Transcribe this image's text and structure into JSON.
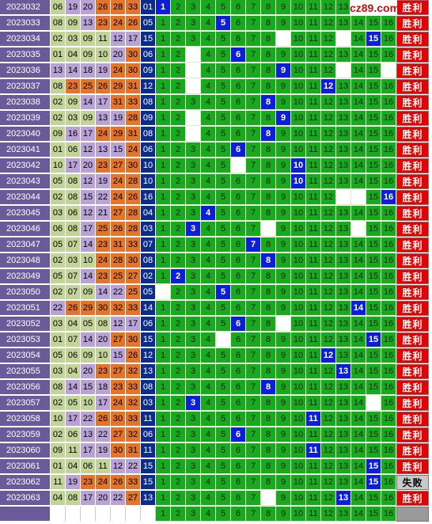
{
  "logo": {
    "text": "cz89.com"
  },
  "rows": [
    {
      "period": "2023032",
      "reds": [
        6,
        19,
        20,
        26,
        28,
        33
      ],
      "blue": 1,
      "result": "胜利"
    },
    {
      "period": "2023033",
      "reds": [
        8,
        9,
        13,
        23,
        24,
        26
      ],
      "blue": 5,
      "result": "胜利"
    },
    {
      "period": "2023034",
      "reds": [
        2,
        3,
        9,
        11,
        12,
        17
      ],
      "blue": 15,
      "result": "胜利"
    },
    {
      "period": "2023035",
      "reds": [
        1,
        4,
        9,
        10,
        20,
        30
      ],
      "blue": 6,
      "result": "胜利"
    },
    {
      "period": "2023036",
      "reds": [
        13,
        14,
        18,
        19,
        24,
        30
      ],
      "blue": 9,
      "result": "胜利"
    },
    {
      "period": "2023037",
      "reds": [
        8,
        23,
        25,
        26,
        29,
        31
      ],
      "blue": 12,
      "result": "胜利"
    },
    {
      "period": "2023038",
      "reds": [
        2,
        9,
        14,
        17,
        31,
        33
      ],
      "blue": 8,
      "result": "胜利"
    },
    {
      "period": "2023039",
      "reds": [
        2,
        3,
        9,
        13,
        19,
        28
      ],
      "blue": 9,
      "result": "胜利"
    },
    {
      "period": "2023040",
      "reds": [
        9,
        16,
        17,
        24,
        29,
        31
      ],
      "blue": 8,
      "result": "胜利"
    },
    {
      "period": "2023041",
      "reds": [
        1,
        6,
        12,
        13,
        15,
        24
      ],
      "blue": 6,
      "result": "胜利"
    },
    {
      "period": "2023042",
      "reds": [
        10,
        17,
        20,
        23,
        27,
        30
      ],
      "blue": 10,
      "result": "胜利"
    },
    {
      "period": "2023043",
      "reds": [
        5,
        8,
        12,
        19,
        24,
        28
      ],
      "blue": 10,
      "result": "胜利"
    },
    {
      "period": "2023044",
      "reds": [
        2,
        8,
        15,
        22,
        24,
        26
      ],
      "blue": 16,
      "result": "胜利"
    },
    {
      "period": "2023045",
      "reds": [
        3,
        6,
        12,
        21,
        27,
        28
      ],
      "blue": 4,
      "result": "胜利"
    },
    {
      "period": "2023046",
      "reds": [
        6,
        8,
        17,
        25,
        26,
        28
      ],
      "blue": 3,
      "result": "胜利"
    },
    {
      "period": "2023047",
      "reds": [
        5,
        7,
        14,
        23,
        31,
        33
      ],
      "blue": 7,
      "result": "胜利"
    },
    {
      "period": "2023048",
      "reds": [
        2,
        3,
        10,
        24,
        28,
        30
      ],
      "blue": 8,
      "result": "胜利"
    },
    {
      "period": "2023049",
      "reds": [
        5,
        7,
        14,
        23,
        25,
        27
      ],
      "blue": 2,
      "result": "胜利"
    },
    {
      "period": "2023050",
      "reds": [
        2,
        7,
        9,
        14,
        22,
        25
      ],
      "blue": 5,
      "result": "胜利"
    },
    {
      "period": "2023051",
      "reds": [
        22,
        26,
        29,
        30,
        32,
        33
      ],
      "blue": 14,
      "result": "胜利"
    },
    {
      "period": "2023052",
      "reds": [
        3,
        4,
        5,
        8,
        12,
        17
      ],
      "blue": 6,
      "result": "胜利"
    },
    {
      "period": "2023053",
      "reds": [
        1,
        7,
        14,
        20,
        27,
        30
      ],
      "blue": 15,
      "result": "胜利"
    },
    {
      "period": "2023054",
      "reds": [
        5,
        6,
        9,
        10,
        15,
        26
      ],
      "blue": 12,
      "result": "胜利"
    },
    {
      "period": "2023055",
      "reds": [
        3,
        4,
        20,
        23,
        27,
        32
      ],
      "blue": 13,
      "result": "胜利"
    },
    {
      "period": "2023056",
      "reds": [
        8,
        14,
        15,
        18,
        23,
        33
      ],
      "blue": 8,
      "result": "胜利"
    },
    {
      "period": "2023057",
      "reds": [
        2,
        5,
        10,
        17,
        24,
        32
      ],
      "blue": 3,
      "result": "胜利"
    },
    {
      "period": "2023058",
      "reds": [
        10,
        17,
        22,
        26,
        30,
        33
      ],
      "blue": 11,
      "result": "胜利"
    },
    {
      "period": "2023059",
      "reds": [
        2,
        6,
        13,
        22,
        27,
        32
      ],
      "blue": 6,
      "result": "胜利"
    },
    {
      "period": "2023060",
      "reds": [
        9,
        11,
        17,
        19,
        30,
        31
      ],
      "blue": 11,
      "result": "胜利"
    },
    {
      "period": "2023061",
      "reds": [
        1,
        4,
        6,
        11,
        12,
        22
      ],
      "blue": 15,
      "result": "胜利"
    },
    {
      "period": "2023062",
      "reds": [
        11,
        19,
        23,
        24,
        26,
        33
      ],
      "blue": 15,
      "result": "失败"
    },
    {
      "period": "2023063",
      "reds": [
        4,
        8,
        17,
        20,
        22,
        27
      ],
      "blue": 13,
      "result": "胜利"
    }
  ],
  "whites": [
    [],
    [],
    [
      9,
      13
    ],
    [
      3
    ],
    [
      3,
      13,
      16
    ],
    [
      3
    ],
    [],
    [
      3
    ],
    [
      3
    ],
    [],
    [
      6
    ],
    [],
    [
      13,
      14
    ],
    [],
    [
      8,
      14
    ],
    [],
    [],
    [],
    [
      1
    ],
    [],
    [
      9
    ],
    [
      5
    ],
    [],
    [],
    [],
    [
      15
    ],
    [],
    [],
    [],
    [],
    [],
    [
      8,
      13
    ]
  ],
  "footer": {
    "numbers": [
      1,
      2,
      3,
      4,
      5,
      6,
      7,
      8,
      9,
      10,
      11,
      12,
      13,
      14,
      15,
      16
    ]
  }
}
